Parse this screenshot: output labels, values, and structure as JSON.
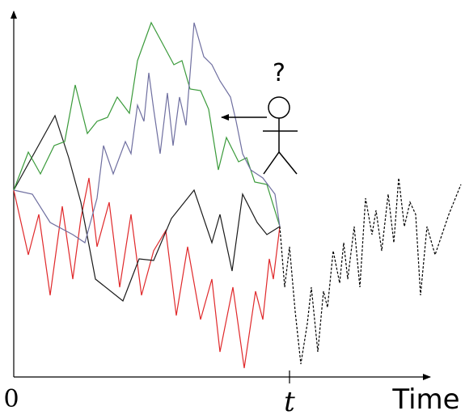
{
  "labels": {
    "origin": "0",
    "t": "t",
    "time": "Time",
    "question": "?"
  }
}
